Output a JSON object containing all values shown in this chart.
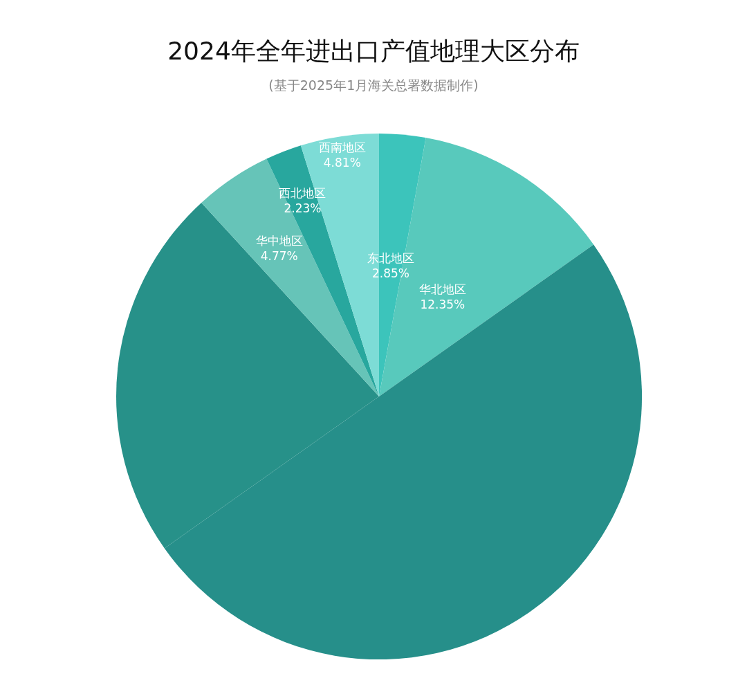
{
  "chart_data": {
    "type": "pie",
    "title": "2024年全年进出口产值地理大区分布",
    "subtitle": "(基于2025年1月海关总署数据制作)",
    "categories": [
      "东北地区",
      "华北地区",
      null,
      null,
      "华中地区",
      "西北地区",
      "西南地区"
    ],
    "values": [
      2.85,
      12.35,
      50.0,
      22.99,
      4.77,
      2.23,
      4.81
    ],
    "value_labels": [
      "2.85%",
      "12.35%",
      null,
      null,
      "4.77%",
      "2.23%",
      "4.81%"
    ],
    "colors": [
      "#3cc4bb",
      "#58c9bc",
      "#268f8a",
      "#279189",
      "#66c4b8",
      "#28a79e",
      "#7ddcd6"
    ],
    "legend": false
  }
}
